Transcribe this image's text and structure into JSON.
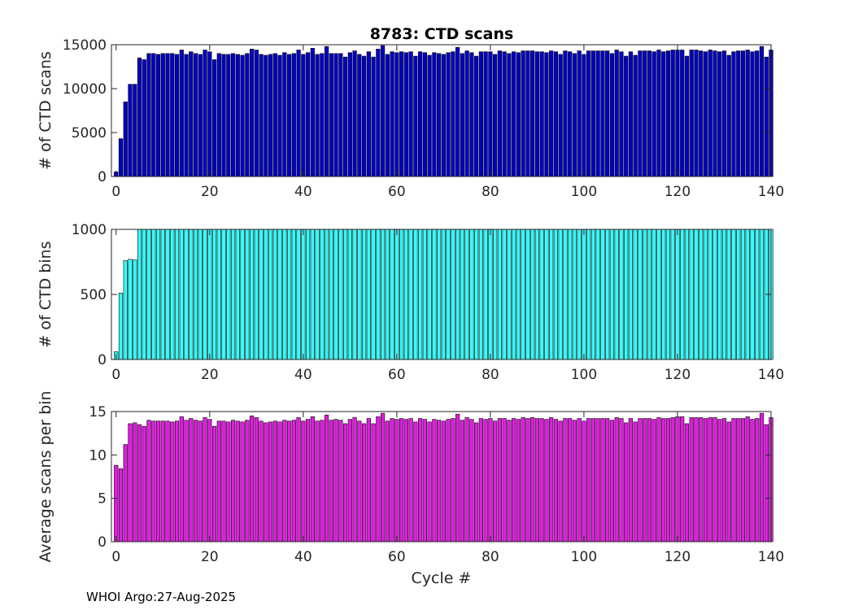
{
  "figure": {
    "title": "8783: CTD scans",
    "footer": "WHOI Argo:27-Aug-2025"
  },
  "chart_data": [
    {
      "type": "bar",
      "title": "8783: CTD scans",
      "ylabel": "# of CTD scans",
      "xlabel": "",
      "xlim": [
        -1,
        140
      ],
      "ylim": [
        0,
        15000
      ],
      "xticks": [
        0,
        20,
        40,
        60,
        80,
        100,
        120,
        140
      ],
      "yticks": [
        0,
        5000,
        10000,
        15000
      ],
      "bar_color": "#0000c8",
      "x_start": 0,
      "values": [
        520,
        4300,
        8500,
        10500,
        10500,
        13500,
        13300,
        14000,
        14000,
        13900,
        14000,
        14000,
        14000,
        13900,
        14400,
        13900,
        14200,
        14000,
        13900,
        14400,
        14200,
        13300,
        14000,
        13900,
        13900,
        14000,
        13900,
        13800,
        14000,
        14500,
        14400,
        13900,
        13800,
        13900,
        14000,
        13800,
        14100,
        13900,
        14000,
        14400,
        13900,
        14100,
        14600,
        13900,
        14000,
        14800,
        14000,
        14000,
        14000,
        13600,
        14100,
        14300,
        13900,
        13700,
        14200,
        13600,
        14500,
        14900,
        13900,
        14200,
        14100,
        14200,
        14100,
        14200,
        13700,
        14200,
        14100,
        13800,
        14100,
        14000,
        13900,
        14100,
        14200,
        14700,
        14000,
        14300,
        14100,
        13700,
        14200,
        14200,
        14200,
        13900,
        14300,
        14200,
        14000,
        14200,
        14100,
        14300,
        14300,
        14300,
        14200,
        14200,
        14100,
        14300,
        14200,
        13900,
        14300,
        14200,
        14000,
        14300,
        13900,
        14300,
        14300,
        14300,
        14300,
        14300,
        14000,
        14400,
        14200,
        13700,
        14200,
        13800,
        14300,
        14300,
        14300,
        14200,
        14400,
        14200,
        14300,
        14400,
        14400,
        14400,
        13700,
        14400,
        14400,
        14300,
        14200,
        14400,
        14300,
        14200,
        14300,
        13800,
        14200,
        14300,
        14300,
        14400,
        14200,
        14300,
        14800,
        13600,
        14400
      ]
    },
    {
      "type": "bar",
      "title": "",
      "ylabel": "# of CTD bins",
      "xlabel": "",
      "xlim": [
        -1,
        140
      ],
      "ylim": [
        0,
        1000
      ],
      "xticks": [
        0,
        20,
        40,
        60,
        80,
        100,
        120,
        140
      ],
      "yticks": [
        0,
        500,
        1000
      ],
      "bar_color": "#33ffff",
      "x_start": 0,
      "values": [
        60,
        510,
        760,
        770,
        765,
        1000,
        1000,
        1000,
        1000,
        1000,
        1000,
        1000,
        1000,
        1000,
        1000,
        1000,
        1000,
        1000,
        1000,
        1000,
        1000,
        1000,
        1000,
        1000,
        1000,
        1000,
        1000,
        1000,
        1000,
        1000,
        1000,
        1000,
        1000,
        1000,
        1000,
        1000,
        1000,
        1000,
        1000,
        1000,
        1000,
        1000,
        1000,
        1000,
        1000,
        1000,
        1000,
        1000,
        1000,
        1000,
        1000,
        1000,
        1000,
        1000,
        1000,
        1000,
        1000,
        1000,
        1000,
        1000,
        1000,
        1000,
        1000,
        1000,
        1000,
        1000,
        1000,
        1000,
        1000,
        1000,
        1000,
        1000,
        1000,
        1000,
        1000,
        1000,
        1000,
        1000,
        1000,
        1000,
        1000,
        1000,
        1000,
        1000,
        1000,
        1000,
        1000,
        1000,
        1000,
        1000,
        1000,
        1000,
        1000,
        1000,
        1000,
        1000,
        1000,
        1000,
        1000,
        1000,
        1000,
        1000,
        1000,
        1000,
        1000,
        1000,
        1000,
        1000,
        1000,
        1000,
        1000,
        1000,
        1000,
        1000,
        1000,
        1000,
        1000,
        1000,
        1000,
        1000,
        1000,
        1000,
        1000,
        1000,
        1000,
        1000,
        1000,
        1000,
        1000,
        1000,
        1000,
        1000,
        1000,
        1000,
        1000,
        1000,
        1000,
        1000,
        1000,
        1000,
        1000
      ]
    },
    {
      "type": "bar",
      "title": "",
      "ylabel": "Average scans per bin",
      "xlabel": "Cycle #",
      "xlim": [
        -1,
        140
      ],
      "ylim": [
        0,
        15
      ],
      "xticks": [
        0,
        20,
        40,
        60,
        80,
        100,
        120,
        140
      ],
      "yticks": [
        0,
        5,
        10,
        15
      ],
      "bar_color": "#e619e6",
      "x_start": 0,
      "values": [
        8.8,
        8.4,
        11.2,
        13.6,
        13.7,
        13.5,
        13.3,
        14.0,
        13.9,
        13.9,
        13.9,
        13.9,
        13.8,
        13.9,
        14.4,
        14.0,
        14.2,
        14.0,
        13.9,
        14.3,
        14.1,
        13.3,
        13.9,
        13.9,
        13.8,
        14.0,
        13.9,
        13.8,
        14.0,
        14.5,
        14.3,
        13.9,
        13.7,
        13.8,
        13.9,
        13.8,
        14.0,
        13.9,
        14.0,
        14.3,
        13.9,
        14.1,
        14.4,
        13.9,
        14.0,
        14.6,
        14.0,
        14.1,
        14.0,
        13.6,
        14.1,
        14.3,
        13.9,
        13.6,
        14.2,
        13.6,
        14.4,
        14.8,
        13.9,
        14.2,
        14.1,
        14.2,
        14.1,
        14.2,
        13.8,
        14.2,
        14.1,
        13.8,
        14.1,
        14.0,
        13.9,
        14.1,
        14.2,
        14.7,
        14.0,
        14.3,
        14.1,
        13.7,
        14.2,
        14.1,
        14.2,
        13.9,
        14.2,
        14.2,
        14.0,
        14.2,
        14.1,
        14.3,
        14.2,
        14.3,
        14.2,
        14.2,
        14.1,
        14.3,
        14.1,
        13.9,
        14.2,
        14.2,
        14.0,
        14.2,
        13.9,
        14.2,
        14.2,
        14.2,
        14.2,
        14.2,
        14.0,
        14.3,
        14.2,
        13.7,
        14.2,
        13.8,
        14.2,
        14.2,
        14.2,
        14.1,
        14.3,
        14.2,
        14.2,
        14.3,
        14.4,
        14.4,
        13.6,
        14.3,
        14.3,
        14.3,
        14.2,
        14.3,
        14.3,
        14.1,
        14.2,
        13.8,
        14.2,
        14.2,
        14.2,
        14.4,
        14.1,
        14.2,
        14.8,
        13.5,
        14.3
      ]
    }
  ]
}
